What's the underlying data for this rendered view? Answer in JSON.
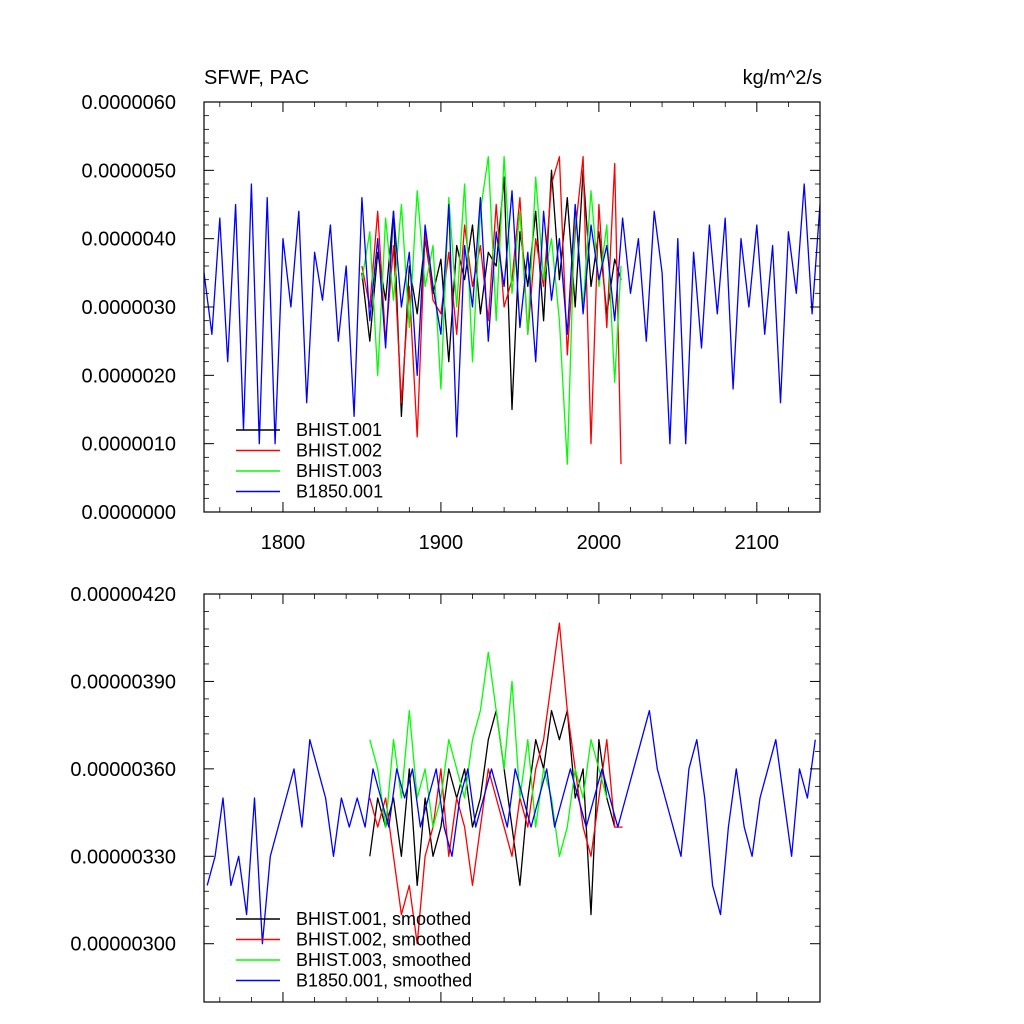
{
  "chart_data": [
    {
      "type": "line",
      "title": "SFWF, PAC",
      "units": "kg/m^2/s",
      "xlim": [
        1750,
        2140
      ],
      "ylim": [
        0,
        6e-06
      ],
      "xticks": [
        1800,
        1900,
        2000,
        2100
      ],
      "xtick_labels": [
        "1800",
        "1900",
        "2000",
        "2100"
      ],
      "yticks": [
        0,
        1e-06,
        2e-06,
        3e-06,
        4e-06,
        5e-06,
        6e-06
      ],
      "ytick_labels": [
        "0.0000000",
        "0.0000010",
        "0.0000020",
        "0.0000030",
        "0.0000040",
        "0.0000050",
        "0.0000060"
      ],
      "legend_position": "bottom-left",
      "series": [
        {
          "name": "BHIST.001",
          "color": "#000000",
          "x": [
            1850,
            1855,
            1860,
            1865,
            1870,
            1875,
            1880,
            1885,
            1890,
            1895,
            1900,
            1905,
            1910,
            1915,
            1920,
            1925,
            1930,
            1935,
            1940,
            1945,
            1950,
            1955,
            1960,
            1965,
            1970,
            1975,
            1980,
            1985,
            1990,
            1995,
            2000,
            2005,
            2010,
            2014
          ],
          "y": [
            3.5e-06,
            2.5e-06,
            3.8e-06,
            3.1e-06,
            4.4e-06,
            1.4e-06,
            3.6e-06,
            2.9e-06,
            4e-06,
            3.2e-06,
            3.7e-06,
            2.2e-06,
            3.9e-06,
            3.4e-06,
            4.2e-06,
            2.9e-06,
            3.8e-06,
            3.6e-06,
            4.9e-06,
            1.5e-06,
            4.1e-06,
            3.3e-06,
            4.4e-06,
            2.8e-06,
            5e-06,
            3.4e-06,
            4.6e-06,
            3e-06,
            5e-06,
            3.3e-06,
            4.1e-06,
            2.9e-06,
            3.7e-06,
            3.4e-06
          ]
        },
        {
          "name": "BHIST.002",
          "color": "#ff0000",
          "x": [
            1850,
            1855,
            1860,
            1865,
            1870,
            1875,
            1880,
            1885,
            1890,
            1895,
            1900,
            1905,
            1910,
            1915,
            1920,
            1925,
            1930,
            1935,
            1940,
            1945,
            1950,
            1955,
            1960,
            1965,
            1970,
            1975,
            1980,
            1985,
            1990,
            1995,
            2000,
            2005,
            2010,
            2014
          ],
          "y": [
            3.6e-06,
            3e-06,
            4.4e-06,
            2.5e-06,
            3.9e-06,
            1.6e-06,
            3.3e-06,
            1.1e-06,
            4.1e-06,
            3.1e-06,
            2.9e-06,
            3.8e-06,
            2.6e-06,
            4.2e-06,
            3.3e-06,
            3.9e-06,
            2.8e-06,
            4.5e-06,
            3e-06,
            3.4e-06,
            4.6e-06,
            2.6e-06,
            4e-06,
            3.3e-06,
            4.8e-06,
            5.2e-06,
            2.3e-06,
            4.1e-06,
            5.2e-06,
            1e-06,
            4.5e-06,
            2.7e-06,
            5.1e-06,
            7e-07
          ]
        },
        {
          "name": "BHIST.003",
          "color": "#00ff00",
          "x": [
            1850,
            1855,
            1860,
            1865,
            1870,
            1875,
            1880,
            1885,
            1890,
            1895,
            1900,
            1905,
            1910,
            1915,
            1920,
            1925,
            1930,
            1935,
            1940,
            1945,
            1950,
            1955,
            1960,
            1965,
            1970,
            1975,
            1980,
            1985,
            1990,
            1995,
            2000,
            2005,
            2010,
            2014
          ],
          "y": [
            3.4e-06,
            4.1e-06,
            2e-06,
            4.3e-06,
            3.1e-06,
            4.5e-06,
            2.7e-06,
            4.7e-06,
            3.3e-06,
            3.9e-06,
            1.8e-06,
            4.6e-06,
            3e-06,
            4.8e-06,
            2.2e-06,
            4.4e-06,
            5.2e-06,
            2.8e-06,
            5.2e-06,
            3.2e-06,
            4.4e-06,
            2.6e-06,
            4.9e-06,
            3.4e-06,
            4e-06,
            2.8e-06,
            7e-07,
            4.5e-06,
            3e-06,
            4.7e-06,
            3.3e-06,
            4.2e-06,
            1.9e-06,
            3.6e-06
          ]
        },
        {
          "name": "B1850.001",
          "color": "#0000ff",
          "x": [
            1750,
            1755,
            1760,
            1765,
            1770,
            1775,
            1780,
            1785,
            1790,
            1795,
            1800,
            1805,
            1810,
            1815,
            1820,
            1825,
            1830,
            1835,
            1840,
            1845,
            1850,
            1855,
            1860,
            1865,
            1870,
            1875,
            1880,
            1885,
            1890,
            1895,
            1900,
            1905,
            1910,
            1915,
            1920,
            1925,
            1930,
            1935,
            1940,
            1945,
            1950,
            1955,
            1960,
            1965,
            1970,
            1975,
            1980,
            1985,
            1990,
            1995,
            2000,
            2005,
            2010,
            2015,
            2020,
            2025,
            2030,
            2035,
            2040,
            2045,
            2050,
            2055,
            2060,
            2065,
            2070,
            2075,
            2080,
            2085,
            2090,
            2095,
            2100,
            2105,
            2110,
            2115,
            2120,
            2125,
            2130,
            2135,
            2140
          ],
          "y": [
            3.5e-06,
            2.6e-06,
            4.3e-06,
            2.2e-06,
            4.5e-06,
            1.2e-06,
            4.8e-06,
            1e-06,
            4.6e-06,
            1e-06,
            4e-06,
            3e-06,
            4.4e-06,
            1.6e-06,
            3.8e-06,
            3.1e-06,
            4.2e-06,
            2.5e-06,
            3.6e-06,
            1.4e-06,
            4.6e-06,
            2.8e-06,
            4e-06,
            2.4e-06,
            4.4e-06,
            3e-06,
            3.8e-06,
            2e-06,
            4.2e-06,
            3.3e-06,
            2.6e-06,
            4.5e-06,
            1.1e-06,
            3.9e-06,
            3e-06,
            4.6e-06,
            2.5e-06,
            4.1e-06,
            3.3e-06,
            4.7e-06,
            2.7e-06,
            3.8e-06,
            2.2e-06,
            4.4e-06,
            3.1e-06,
            4e-06,
            2.6e-06,
            4.5e-06,
            2.9e-06,
            4.2e-06,
            3.4e-06,
            3.9e-06,
            2.8e-06,
            4.3e-06,
            3.2e-06,
            4e-06,
            2.5e-06,
            4.4e-06,
            3.5e-06,
            1e-06,
            4e-06,
            1e-06,
            3.8e-06,
            2.4e-06,
            4.2e-06,
            2.9e-06,
            4.3e-06,
            1.8e-06,
            4e-06,
            3e-06,
            4.2e-06,
            2.6e-06,
            3.9e-06,
            1.6e-06,
            4.1e-06,
            3.2e-06,
            4.8e-06,
            2.9e-06,
            4.5e-06
          ]
        }
      ],
      "legend": [
        "BHIST.001",
        "BHIST.002",
        "BHIST.003",
        "B1850.001"
      ]
    },
    {
      "type": "line",
      "title": "",
      "xlim": [
        1750,
        2140
      ],
      "ylim": [
        2.8e-06,
        4.2e-06
      ],
      "xticks": [
        1800,
        1900,
        2000,
        2100
      ],
      "yticks": [
        3e-06,
        3.3e-06,
        3.6e-06,
        3.9e-06,
        4.2e-06
      ],
      "ytick_labels": [
        "0.00000300",
        "0.00000330",
        "0.00000360",
        "0.00000390",
        "0.00000420"
      ],
      "legend_position": "bottom-left",
      "series": [
        {
          "name": "BHIST.001, smoothed",
          "color": "#000000",
          "x": [
            1855,
            1860,
            1865,
            1870,
            1875,
            1880,
            1885,
            1890,
            1895,
            1900,
            1905,
            1910,
            1915,
            1920,
            1925,
            1930,
            1935,
            1940,
            1945,
            1950,
            1955,
            1960,
            1965,
            1970,
            1975,
            1980,
            1985,
            1990,
            1995,
            2000,
            2005,
            2010
          ],
          "y": [
            3.3e-06,
            3.5e-06,
            3.4e-06,
            3.5e-06,
            3.3e-06,
            3.6e-06,
            3.2e-06,
            3.5e-06,
            3.3e-06,
            3.4e-06,
            3.6e-06,
            3.5e-06,
            3.6e-06,
            3.4e-06,
            3.5e-06,
            3.7e-06,
            3.8e-06,
            3.6e-06,
            3.4e-06,
            3.2e-06,
            3.5e-06,
            3.7e-06,
            3.6e-06,
            3.8e-06,
            3.7e-06,
            3.8e-06,
            3.5e-06,
            3.6e-06,
            3.1e-06,
            3.7e-06,
            3.5e-06,
            3.4e-06
          ]
        },
        {
          "name": "BHIST.002, smoothed",
          "color": "#ff0000",
          "x": [
            1855,
            1860,
            1865,
            1870,
            1875,
            1880,
            1885,
            1890,
            1895,
            1900,
            1905,
            1910,
            1915,
            1920,
            1925,
            1930,
            1935,
            1940,
            1945,
            1950,
            1955,
            1960,
            1965,
            1970,
            1975,
            1980,
            1985,
            1990,
            1995,
            2000,
            2005,
            2010,
            2015
          ],
          "y": [
            3.5e-06,
            3.4e-06,
            3.5e-06,
            3.3e-06,
            3.1e-06,
            3.2e-06,
            3e-06,
            3.3e-06,
            3.4e-06,
            3.6e-06,
            3.3e-06,
            3.5e-06,
            3.4e-06,
            3.2e-06,
            3.4e-06,
            3.6e-06,
            3.5e-06,
            3.4e-06,
            3.3e-06,
            3.5e-06,
            3.4e-06,
            3.6e-06,
            3.7e-06,
            3.9e-06,
            4.1e-06,
            3.8e-06,
            3.6e-06,
            3.4e-06,
            3.3e-06,
            3.5e-06,
            3.7e-06,
            3.4e-06,
            3.4e-06
          ]
        },
        {
          "name": "BHIST.003, smoothed",
          "color": "#00ff00",
          "x": [
            1855,
            1860,
            1865,
            1870,
            1875,
            1880,
            1885,
            1890,
            1895,
            1900,
            1905,
            1910,
            1915,
            1920,
            1925,
            1930,
            1935,
            1940,
            1945,
            1950,
            1955,
            1960,
            1965,
            1970,
            1975,
            1980,
            1985,
            1990,
            1995,
            2000,
            2005
          ],
          "y": [
            3.7e-06,
            3.6e-06,
            3.4e-06,
            3.7e-06,
            3.5e-06,
            3.8e-06,
            3.5e-06,
            3.6e-06,
            3.4e-06,
            3.5e-06,
            3.7e-06,
            3.6e-06,
            3.5e-06,
            3.7e-06,
            3.8e-06,
            4e-06,
            3.8e-06,
            3.6e-06,
            3.9e-06,
            3.5e-06,
            3.7e-06,
            3.4e-06,
            3.6e-06,
            3.5e-06,
            3.3e-06,
            3.4e-06,
            3.6e-06,
            3.5e-06,
            3.7e-06,
            3.6e-06,
            3.5e-06
          ]
        },
        {
          "name": "B1850.001, smoothed",
          "color": "#0000ff",
          "x": [
            1752,
            1757,
            1762,
            1767,
            1772,
            1777,
            1782,
            1787,
            1792,
            1797,
            1802,
            1807,
            1812,
            1817,
            1822,
            1827,
            1832,
            1837,
            1842,
            1847,
            1852,
            1857,
            1862,
            1867,
            1872,
            1877,
            1882,
            1887,
            1892,
            1897,
            1902,
            1907,
            1912,
            1917,
            1922,
            1927,
            1932,
            1937,
            1942,
            1947,
            1952,
            1957,
            1962,
            1967,
            1972,
            1977,
            1982,
            1987,
            1992,
            1997,
            2002,
            2007,
            2012,
            2017,
            2022,
            2027,
            2032,
            2037,
            2042,
            2047,
            2052,
            2057,
            2062,
            2067,
            2072,
            2077,
            2082,
            2087,
            2092,
            2097,
            2102,
            2107,
            2112,
            2117,
            2122,
            2127,
            2132,
            2137
          ],
          "y": [
            3.2e-06,
            3.3e-06,
            3.5e-06,
            3.2e-06,
            3.3e-06,
            3.1e-06,
            3.5e-06,
            3e-06,
            3.3e-06,
            3.4e-06,
            3.5e-06,
            3.6e-06,
            3.4e-06,
            3.7e-06,
            3.6e-06,
            3.5e-06,
            3.3e-06,
            3.5e-06,
            3.4e-06,
            3.5e-06,
            3.4e-06,
            3.6e-06,
            3.5e-06,
            3.4e-06,
            3.6e-06,
            3.5e-06,
            3.6e-06,
            3.4e-06,
            3.5e-06,
            3.6e-06,
            3.4e-06,
            3.3e-06,
            3.5e-06,
            3.6e-06,
            3.4e-06,
            3.5e-06,
            3.6e-06,
            3.5e-06,
            3.4e-06,
            3.6e-06,
            3.5e-06,
            3.4e-06,
            3.5e-06,
            3.6e-06,
            3.4e-06,
            3.5e-06,
            3.6e-06,
            3.5e-06,
            3.4e-06,
            3.5e-06,
            3.6e-06,
            3.5e-06,
            3.4e-06,
            3.5e-06,
            3.6e-06,
            3.7e-06,
            3.8e-06,
            3.6e-06,
            3.5e-06,
            3.4e-06,
            3.3e-06,
            3.6e-06,
            3.7e-06,
            3.5e-06,
            3.2e-06,
            3.1e-06,
            3.4e-06,
            3.6e-06,
            3.4e-06,
            3.3e-06,
            3.5e-06,
            3.6e-06,
            3.7e-06,
            3.5e-06,
            3.3e-06,
            3.6e-06,
            3.5e-06,
            3.7e-06
          ]
        }
      ],
      "legend": [
        "BHIST.001, smoothed",
        "BHIST.002, smoothed",
        "BHIST.003, smoothed",
        "B1850.001, smoothed"
      ]
    }
  ]
}
